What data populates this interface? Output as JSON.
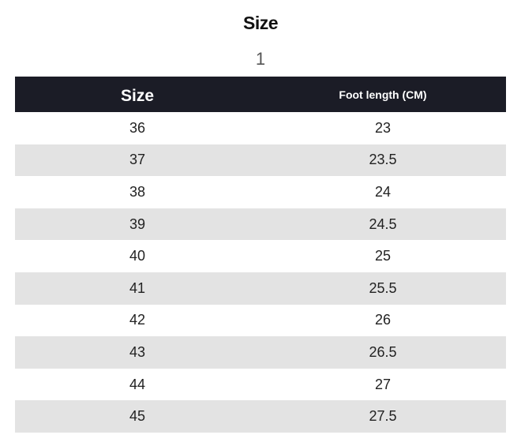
{
  "title": "Size",
  "subtitle": "1",
  "table": {
    "headers": [
      "Size",
      "Foot length (CM)"
    ],
    "rows": [
      [
        "36",
        "23"
      ],
      [
        "37",
        "23.5"
      ],
      [
        "38",
        "24"
      ],
      [
        "39",
        "24.5"
      ],
      [
        "40",
        "25"
      ],
      [
        "41",
        "25.5"
      ],
      [
        "42",
        "26"
      ],
      [
        "43",
        "26.5"
      ],
      [
        "44",
        "27"
      ],
      [
        "45",
        "27.5"
      ]
    ]
  },
  "colors": {
    "header_bg": "#1b1c26",
    "stripe": "#e3e3e3"
  }
}
